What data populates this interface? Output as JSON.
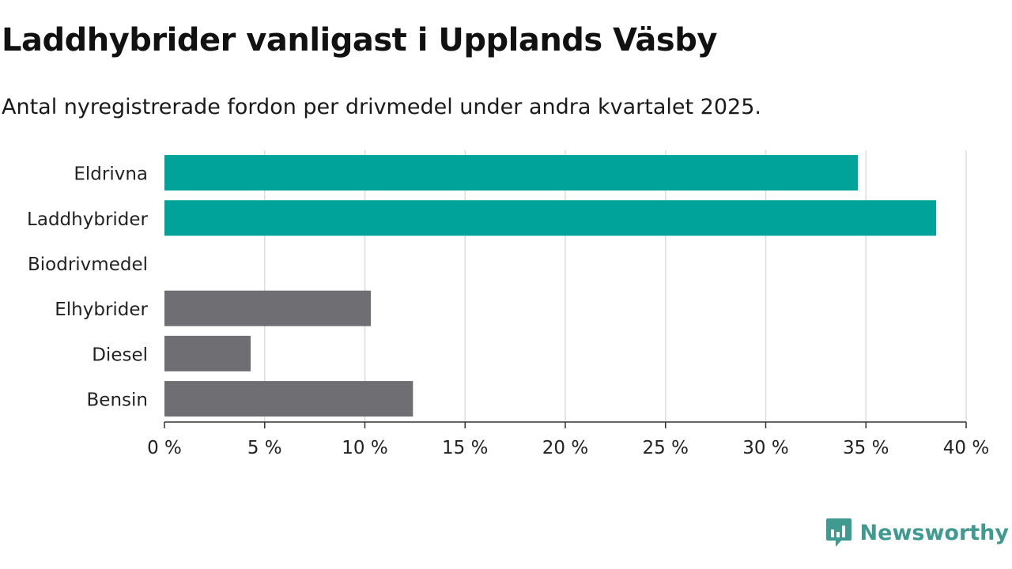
{
  "title": "Laddhybrider vanligast i Upplands Väsby",
  "subtitle": "Antal nyregistrerade fordon per drivmedel under andra kvartalet 2025.",
  "brand": {
    "name": "Newsworthy",
    "color": "#3f9a8f"
  },
  "chart_data": {
    "type": "bar",
    "orientation": "horizontal",
    "categories": [
      "Eldrivna",
      "Laddhybrider",
      "Biodrivmedel",
      "Elhybrider",
      "Diesel",
      "Bensin"
    ],
    "values": [
      34.6,
      38.5,
      0,
      10.3,
      4.3,
      12.4
    ],
    "colors": [
      "#00a39a",
      "#00a39a",
      "#00a39a",
      "#6f6e73",
      "#6f6e73",
      "#6f6e73"
    ],
    "unit": "%",
    "xlim": [
      0,
      40
    ],
    "xticks": [
      0,
      5,
      10,
      15,
      20,
      25,
      30,
      35,
      40
    ],
    "xtick_labels": [
      "0 %",
      "5 %",
      "10 %",
      "15 %",
      "20 %",
      "25 %",
      "30 %",
      "35 %",
      "40 %"
    ],
    "grid": true
  }
}
